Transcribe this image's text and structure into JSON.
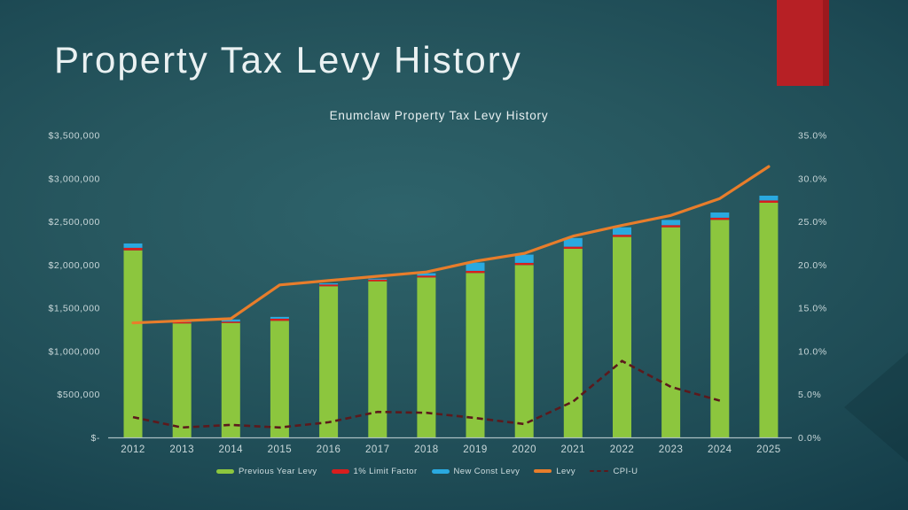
{
  "slide": {
    "title": "Property Tax Levy History",
    "accent_bar_color": "#b72025"
  },
  "chart_data": {
    "type": "bar",
    "subtype": "stacked-bars-with-lines",
    "title": "Enumclaw Property Tax Levy History",
    "categories": [
      "2012",
      "2013",
      "2014",
      "2015",
      "2016",
      "2017",
      "2018",
      "2019",
      "2020",
      "2021",
      "2022",
      "2023",
      "2024",
      "2025"
    ],
    "bar_series": [
      {
        "name": "Previous Year Levy",
        "color": "#8cc63e",
        "values": [
          2170000,
          1325000,
          1330000,
          1355000,
          1755000,
          1812000,
          1857000,
          1908000,
          2000000,
          2188000,
          2325000,
          2437000,
          2523000,
          2721000
        ]
      },
      {
        "name": "1% Limit Factor",
        "color": "#d91e1e",
        "values": [
          30000,
          15000,
          15000,
          25000,
          20000,
          20000,
          20000,
          25000,
          25000,
          25000,
          25000,
          25000,
          25000,
          27000
        ]
      },
      {
        "name": "New Const Levy",
        "color": "#2aa9e0",
        "values": [
          50000,
          15000,
          25000,
          20000,
          13000,
          10000,
          28000,
          95000,
          95000,
          100000,
          87000,
          60000,
          60000,
          55000
        ]
      }
    ],
    "line_series": [
      {
        "name": "Levy",
        "color": "#e87d2b",
        "axis": "left",
        "style": "solid",
        "values": [
          1330000,
          1355000,
          1380000,
          1770000,
          1820000,
          1870000,
          1920000,
          2045000,
          2135000,
          2335000,
          2460000,
          2575000,
          2770000,
          3140000
        ]
      },
      {
        "name": "CPI-U",
        "color": "#5c191c",
        "axis": "right",
        "style": "dashed",
        "values": [
          2.4,
          1.2,
          1.5,
          1.2,
          1.8,
          3.0,
          2.9,
          2.3,
          1.6,
          4.2,
          8.9,
          5.9,
          4.3,
          null
        ]
      }
    ],
    "left_axis": {
      "min": 0,
      "max": 3500000,
      "tick_step": 500000,
      "labels": [
        "$3,500,000",
        "$3,000,000",
        "$2,500,000",
        "$2,000,000",
        "$1,500,000",
        "$1,000,000",
        "$500,000",
        "$-"
      ]
    },
    "right_axis": {
      "min": 0,
      "max": 35,
      "tick_step": 5,
      "labels": [
        "35.0%",
        "30.0%",
        "25.0%",
        "20.0%",
        "15.0%",
        "10.0%",
        "5.0%",
        "0.0%"
      ]
    },
    "grid": "off",
    "legend_position": "bottom"
  }
}
